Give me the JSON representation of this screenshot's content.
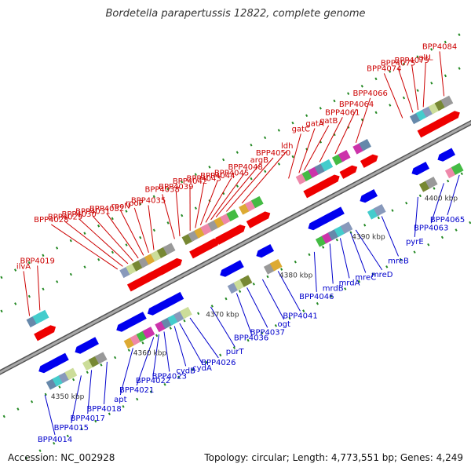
{
  "title": "Bordetella parapertussis 12822, complete genome",
  "footer": {
    "accession": "Accession: NC_002928",
    "summary": "Topology: circular; Length: 4,773,551 bp; Genes: 4,249"
  },
  "colors": {
    "top_label": "#cc0000",
    "bottom_label": "#0000cc",
    "plus_arrow": "#ee0000",
    "minus_arrow": "#0000ee",
    "backbone": "#888888",
    "tick": "#228822"
  },
  "scale": {
    "ticks": [
      {
        "label": "4350 kbp",
        "pos": 0.111
      },
      {
        "label": "4360 kbp",
        "pos": 0.27
      },
      {
        "label": "4370 kbp",
        "pos": 0.41
      },
      {
        "label": "4380 kbp",
        "pos": 0.552
      },
      {
        "label": "4390 kbp",
        "pos": 0.692
      },
      {
        "label": "4400 kbp",
        "pos": 0.832
      }
    ]
  },
  "genes_top": [
    {
      "label": "ilvA",
      "pos": 0.12
    },
    {
      "label": "BPP4019",
      "pos": 0.14
    },
    {
      "label": "BPP4028",
      "pos": 0.29
    },
    {
      "label": "BPP4029",
      "pos": 0.3
    },
    {
      "label": "BPP4030",
      "pos": 0.31
    },
    {
      "label": "BPP4031",
      "pos": 0.32
    },
    {
      "label": "BPP4032",
      "pos": 0.33
    },
    {
      "label": "rpoN",
      "pos": 0.34
    },
    {
      "label": "rpoP",
      "pos": 0.35
    },
    {
      "label": "BPP4035",
      "pos": 0.36
    },
    {
      "label": "BPP4038",
      "pos": 0.4
    },
    {
      "label": "BPP4039",
      "pos": 0.41
    },
    {
      "label": "BPP4042",
      "pos": 0.43
    },
    {
      "label": "BPP4043",
      "pos": 0.44
    },
    {
      "label": "BPP4044",
      "pos": 0.45
    },
    {
      "label": "BPP4045",
      "pos": 0.46
    },
    {
      "label": "BPP4048",
      "pos": 0.47
    },
    {
      "label": "argB",
      "pos": 0.48
    },
    {
      "label": "BPP4050",
      "pos": 0.5
    },
    {
      "label": "ldh",
      "pos": 0.53
    },
    {
      "label": "gatC",
      "pos": 0.62
    },
    {
      "label": "gatA",
      "pos": 0.64
    },
    {
      "label": "gatB",
      "pos": 0.65
    },
    {
      "label": "BPP4061",
      "pos": 0.68
    },
    {
      "label": "BPP4064",
      "pos": 0.71
    },
    {
      "label": "BPP4066",
      "pos": 0.75
    },
    {
      "label": "BPP4074",
      "pos": 0.84
    },
    {
      "label": "BPP4075",
      "pos": 0.86
    },
    {
      "label": "BPP4079",
      "pos": 0.87
    },
    {
      "label": "gltL",
      "pos": 0.88
    },
    {
      "label": "BPP4084",
      "pos": 0.92
    }
  ],
  "genes_bottom": [
    {
      "label": "BPP4014",
      "pos": 0.08
    },
    {
      "label": "BPP4015",
      "pos": 0.15
    },
    {
      "label": "BPP4017",
      "pos": 0.17
    },
    {
      "label": "BPP4018",
      "pos": 0.2
    },
    {
      "label": "apt",
      "pos": 0.25
    },
    {
      "label": "BPP4021",
      "pos": 0.29
    },
    {
      "label": "BPP4022",
      "pos": 0.3
    },
    {
      "label": "BPP4023",
      "pos": 0.31
    },
    {
      "label": "cydB",
      "pos": 0.33
    },
    {
      "label": "cydA",
      "pos": 0.34
    },
    {
      "label": "BPP4026",
      "pos": 0.36
    },
    {
      "label": "purT",
      "pos": 0.4
    },
    {
      "label": "BPP4036",
      "pos": 0.45
    },
    {
      "label": "BPP4037",
      "pos": 0.47
    },
    {
      "label": "ogt",
      "pos": 0.5
    },
    {
      "label": "BPP4041",
      "pos": 0.53
    },
    {
      "label": "BPP4046",
      "pos": 0.6
    },
    {
      "label": "mrdB",
      "pos": 0.63
    },
    {
      "label": "mrdA",
      "pos": 0.65
    },
    {
      "label": "mreC",
      "pos": 0.67
    },
    {
      "label": "mreD",
      "pos": 0.68
    },
    {
      "label": "mreB",
      "pos": 0.73
    },
    {
      "label": "pyrE",
      "pos": 0.8
    },
    {
      "label": "BPP4063",
      "pos": 0.85
    },
    {
      "label": "BPP4065",
      "pos": 0.88
    }
  ]
}
